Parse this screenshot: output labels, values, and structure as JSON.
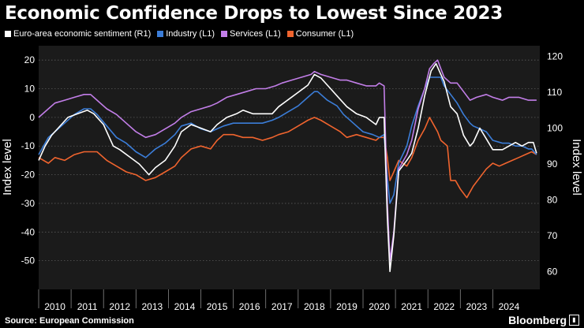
{
  "page": {
    "title": "Economic Confidence Drops to Lowest Since 2023",
    "source": "Source: European Commission",
    "brand": "Bloomberg"
  },
  "chart_data": {
    "type": "line",
    "title": "Economic Confidence Drops to Lowest Since 2023",
    "ylabel_left": "Index level",
    "ylabel_right": "Index level",
    "ylim_left": [
      -60,
      25
    ],
    "ylim_right": [
      55,
      123
    ],
    "yticks_left": [
      20,
      10,
      0,
      -10,
      -20,
      -30,
      -40,
      -50
    ],
    "yticks_right": [
      120,
      110,
      100,
      90,
      80,
      70,
      60
    ],
    "xlim": [
      2009.5,
      2024.95
    ],
    "xticks": [
      "2010",
      "2011",
      "2012",
      "2013",
      "2014",
      "2015",
      "2016",
      "2017",
      "2018",
      "2019",
      "2020",
      "2021",
      "2022",
      "2023",
      "2024"
    ],
    "grid": "horizontal dotted",
    "legend_position": "top-left",
    "series": [
      {
        "name": "Industry (L1)",
        "axis": "left",
        "color": "#3b7dd8",
        "points": [
          [
            2009.5,
            -13
          ],
          [
            2009.8,
            -7
          ],
          [
            2010.0,
            -5
          ],
          [
            2010.3,
            -2
          ],
          [
            2010.6,
            1
          ],
          [
            2010.9,
            3
          ],
          [
            2011.1,
            3
          ],
          [
            2011.3,
            1
          ],
          [
            2011.6,
            -3
          ],
          [
            2011.9,
            -7
          ],
          [
            2012.2,
            -9
          ],
          [
            2012.5,
            -12
          ],
          [
            2012.8,
            -14
          ],
          [
            2013.1,
            -11
          ],
          [
            2013.4,
            -9
          ],
          [
            2013.7,
            -6
          ],
          [
            2013.9,
            -3
          ],
          [
            2014.2,
            -2
          ],
          [
            2014.5,
            -4
          ],
          [
            2014.8,
            -5
          ],
          [
            2015.0,
            -4
          ],
          [
            2015.2,
            -3
          ],
          [
            2015.5,
            -2
          ],
          [
            2015.8,
            -2
          ],
          [
            2016.1,
            -2
          ],
          [
            2016.4,
            -2
          ],
          [
            2016.7,
            -1
          ],
          [
            2016.9,
            0
          ],
          [
            2017.2,
            2
          ],
          [
            2017.5,
            4
          ],
          [
            2017.8,
            7
          ],
          [
            2018.0,
            9
          ],
          [
            2018.1,
            9
          ],
          [
            2018.4,
            6
          ],
          [
            2018.7,
            4
          ],
          [
            2018.9,
            1
          ],
          [
            2019.2,
            -2
          ],
          [
            2019.5,
            -5
          ],
          [
            2019.8,
            -6
          ],
          [
            2020.0,
            -7
          ],
          [
            2020.15,
            -6
          ],
          [
            2020.25,
            -21
          ],
          [
            2020.33,
            -30
          ],
          [
            2020.45,
            -27
          ],
          [
            2020.6,
            -16
          ],
          [
            2020.85,
            -10
          ],
          [
            2021.0,
            -3
          ],
          [
            2021.2,
            4
          ],
          [
            2021.4,
            10
          ],
          [
            2021.55,
            14
          ],
          [
            2021.75,
            14
          ],
          [
            2021.9,
            14
          ],
          [
            2022.0,
            11
          ],
          [
            2022.2,
            8
          ],
          [
            2022.4,
            5
          ],
          [
            2022.6,
            1
          ],
          [
            2022.8,
            -2
          ],
          [
            2022.9,
            -3
          ],
          [
            2023.1,
            -4
          ],
          [
            2023.3,
            -5
          ],
          [
            2023.5,
            -8
          ],
          [
            2023.8,
            -9
          ],
          [
            2024.0,
            -9
          ],
          [
            2024.2,
            -10
          ],
          [
            2024.4,
            -10
          ],
          [
            2024.6,
            -11
          ],
          [
            2024.7,
            -11
          ],
          [
            2024.85,
            -13
          ]
        ]
      },
      {
        "name": "Services (L1)",
        "axis": "left",
        "color": "#c27ee8",
        "points": [
          [
            2009.5,
            0
          ],
          [
            2009.8,
            3
          ],
          [
            2010.0,
            5
          ],
          [
            2010.3,
            6
          ],
          [
            2010.6,
            7
          ],
          [
            2010.9,
            8
          ],
          [
            2011.1,
            8
          ],
          [
            2011.3,
            6
          ],
          [
            2011.6,
            3
          ],
          [
            2011.9,
            1
          ],
          [
            2012.2,
            -2
          ],
          [
            2012.5,
            -5
          ],
          [
            2012.8,
            -7
          ],
          [
            2013.1,
            -6
          ],
          [
            2013.4,
            -4
          ],
          [
            2013.7,
            -2
          ],
          [
            2013.9,
            0
          ],
          [
            2014.2,
            2
          ],
          [
            2014.5,
            3
          ],
          [
            2014.8,
            4
          ],
          [
            2015.0,
            5
          ],
          [
            2015.3,
            7
          ],
          [
            2015.6,
            8
          ],
          [
            2015.9,
            9
          ],
          [
            2016.2,
            10
          ],
          [
            2016.5,
            10
          ],
          [
            2016.8,
            11
          ],
          [
            2017.0,
            12
          ],
          [
            2017.3,
            13
          ],
          [
            2017.6,
            14
          ],
          [
            2017.9,
            15
          ],
          [
            2018.0,
            16
          ],
          [
            2018.2,
            15
          ],
          [
            2018.5,
            14
          ],
          [
            2018.8,
            13
          ],
          [
            2019.0,
            13
          ],
          [
            2019.3,
            12
          ],
          [
            2019.6,
            11
          ],
          [
            2019.9,
            11
          ],
          [
            2020.0,
            12
          ],
          [
            2020.15,
            11
          ],
          [
            2020.25,
            -30
          ],
          [
            2020.33,
            -50
          ],
          [
            2020.45,
            -40
          ],
          [
            2020.6,
            -18
          ],
          [
            2020.85,
            -13
          ],
          [
            2021.0,
            -8
          ],
          [
            2021.2,
            3
          ],
          [
            2021.4,
            10
          ],
          [
            2021.55,
            17
          ],
          [
            2021.7,
            19
          ],
          [
            2021.8,
            20
          ],
          [
            2021.9,
            17
          ],
          [
            2022.0,
            14
          ],
          [
            2022.2,
            12
          ],
          [
            2022.4,
            12
          ],
          [
            2022.6,
            9
          ],
          [
            2022.8,
            6
          ],
          [
            2023.0,
            7
          ],
          [
            2023.3,
            8
          ],
          [
            2023.5,
            7
          ],
          [
            2023.8,
            6
          ],
          [
            2024.0,
            7
          ],
          [
            2024.3,
            7
          ],
          [
            2024.6,
            6
          ],
          [
            2024.85,
            6
          ]
        ]
      },
      {
        "name": "Consumer (L1)",
        "axis": "left",
        "color": "#f0642e",
        "points": [
          [
            2009.5,
            -14
          ],
          [
            2009.8,
            -16
          ],
          [
            2010.0,
            -14
          ],
          [
            2010.3,
            -15
          ],
          [
            2010.6,
            -13
          ],
          [
            2010.9,
            -12
          ],
          [
            2011.1,
            -12
          ],
          [
            2011.3,
            -12
          ],
          [
            2011.6,
            -15
          ],
          [
            2011.9,
            -17
          ],
          [
            2012.2,
            -19
          ],
          [
            2012.5,
            -20
          ],
          [
            2012.8,
            -22
          ],
          [
            2013.1,
            -21
          ],
          [
            2013.4,
            -19
          ],
          [
            2013.7,
            -17
          ],
          [
            2013.9,
            -14
          ],
          [
            2014.2,
            -11
          ],
          [
            2014.5,
            -10
          ],
          [
            2014.8,
            -11
          ],
          [
            2015.0,
            -8
          ],
          [
            2015.2,
            -6
          ],
          [
            2015.5,
            -6
          ],
          [
            2015.8,
            -7
          ],
          [
            2016.1,
            -7
          ],
          [
            2016.4,
            -8
          ],
          [
            2016.7,
            -7
          ],
          [
            2016.9,
            -6
          ],
          [
            2017.2,
            -5
          ],
          [
            2017.5,
            -3
          ],
          [
            2017.8,
            -1
          ],
          [
            2018.0,
            0
          ],
          [
            2018.2,
            -1
          ],
          [
            2018.5,
            -3
          ],
          [
            2018.8,
            -5
          ],
          [
            2019.0,
            -7
          ],
          [
            2019.3,
            -6
          ],
          [
            2019.6,
            -7
          ],
          [
            2019.9,
            -8
          ],
          [
            2020.0,
            -7
          ],
          [
            2020.15,
            -7
          ],
          [
            2020.25,
            -14
          ],
          [
            2020.33,
            -22
          ],
          [
            2020.45,
            -19
          ],
          [
            2020.6,
            -15
          ],
          [
            2020.85,
            -17
          ],
          [
            2021.0,
            -14
          ],
          [
            2021.2,
            -8
          ],
          [
            2021.4,
            -4
          ],
          [
            2021.55,
            0
          ],
          [
            2021.7,
            -3
          ],
          [
            2021.8,
            -5
          ],
          [
            2021.9,
            -8
          ],
          [
            2022.0,
            -9
          ],
          [
            2022.1,
            -10
          ],
          [
            2022.2,
            -22
          ],
          [
            2022.35,
            -22
          ],
          [
            2022.5,
            -25
          ],
          [
            2022.7,
            -28
          ],
          [
            2022.9,
            -24
          ],
          [
            2023.1,
            -21
          ],
          [
            2023.3,
            -18
          ],
          [
            2023.5,
            -16
          ],
          [
            2023.7,
            -17
          ],
          [
            2023.9,
            -16
          ],
          [
            2024.1,
            -15
          ],
          [
            2024.3,
            -14
          ],
          [
            2024.5,
            -13
          ],
          [
            2024.7,
            -12
          ],
          [
            2024.85,
            -13
          ]
        ]
      },
      {
        "name": "Euro-area economic sentiment (R1)",
        "axis": "right",
        "color": "#ffffff",
        "points": [
          [
            2009.5,
            91
          ],
          [
            2009.7,
            95
          ],
          [
            2009.9,
            98
          ],
          [
            2010.1,
            100
          ],
          [
            2010.4,
            103
          ],
          [
            2010.7,
            104
          ],
          [
            2011.0,
            105
          ],
          [
            2011.2,
            104
          ],
          [
            2011.5,
            101
          ],
          [
            2011.8,
            95
          ],
          [
            2012.0,
            94
          ],
          [
            2012.3,
            92
          ],
          [
            2012.6,
            90
          ],
          [
            2012.9,
            87
          ],
          [
            2013.1,
            89
          ],
          [
            2013.4,
            91
          ],
          [
            2013.7,
            95
          ],
          [
            2013.9,
            99
          ],
          [
            2014.2,
            101
          ],
          [
            2014.5,
            100
          ],
          [
            2014.8,
            99
          ],
          [
            2015.0,
            101
          ],
          [
            2015.3,
            103
          ],
          [
            2015.6,
            104
          ],
          [
            2015.8,
            105
          ],
          [
            2016.1,
            104
          ],
          [
            2016.4,
            104
          ],
          [
            2016.7,
            104
          ],
          [
            2016.9,
            106
          ],
          [
            2017.2,
            108
          ],
          [
            2017.5,
            110
          ],
          [
            2017.8,
            112
          ],
          [
            2018.0,
            115
          ],
          [
            2018.2,
            114
          ],
          [
            2018.5,
            111
          ],
          [
            2018.8,
            108
          ],
          [
            2019.0,
            106
          ],
          [
            2019.3,
            104
          ],
          [
            2019.6,
            103
          ],
          [
            2019.9,
            101
          ],
          [
            2020.0,
            103
          ],
          [
            2020.15,
            103
          ],
          [
            2020.25,
            75
          ],
          [
            2020.33,
            60
          ],
          [
            2020.45,
            70
          ],
          [
            2020.6,
            88
          ],
          [
            2020.85,
            91
          ],
          [
            2021.0,
            93
          ],
          [
            2021.2,
            100
          ],
          [
            2021.4,
            109
          ],
          [
            2021.6,
            116
          ],
          [
            2021.75,
            118
          ],
          [
            2021.9,
            115
          ],
          [
            2022.0,
            113
          ],
          [
            2022.2,
            106
          ],
          [
            2022.4,
            104
          ],
          [
            2022.6,
            98
          ],
          [
            2022.8,
            95
          ],
          [
            2022.9,
            96
          ],
          [
            2023.1,
            100
          ],
          [
            2023.3,
            97
          ],
          [
            2023.5,
            94
          ],
          [
            2023.8,
            94
          ],
          [
            2024.0,
            95
          ],
          [
            2024.2,
            96
          ],
          [
            2024.4,
            95
          ],
          [
            2024.6,
            96
          ],
          [
            2024.75,
            96
          ],
          [
            2024.85,
            93
          ]
        ]
      }
    ]
  }
}
